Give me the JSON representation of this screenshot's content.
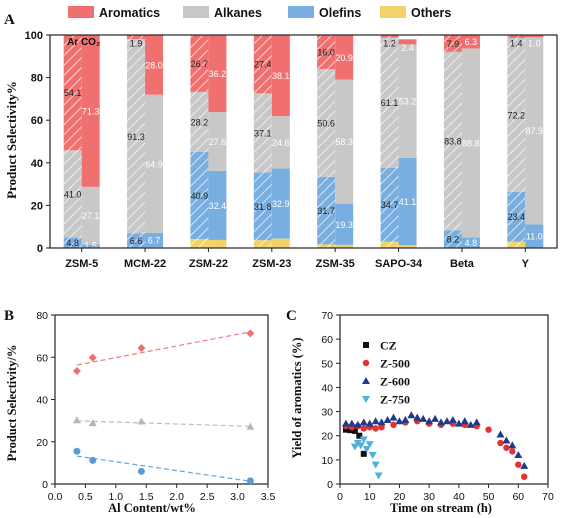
{
  "figure": {
    "panel_labels": [
      "A",
      "B",
      "C"
    ]
  },
  "colors": {
    "Aromatics": "#f07070",
    "Alkanes": "#c8c8c8",
    "Olefins": "#79aee0",
    "Others": "#f2d36b",
    "B_aromatics": "#f07070",
    "B_alkanes": "#b8b8b8",
    "B_olefins": "#5b9bd5",
    "CZ": "#111111",
    "Z-500": "#e83030",
    "Z-600": "#1f3b8a",
    "Z-750": "#4fb3d9"
  },
  "chart_data": [
    {
      "id": "A",
      "type": "bar",
      "stacked": true,
      "ylabel": "Product Selectivity%",
      "ylim": [
        0,
        100
      ],
      "yticks": [
        0,
        20,
        40,
        60,
        80,
        100
      ],
      "legend": [
        "Aromatics",
        "Alkanes",
        "Olefins",
        "Others"
      ],
      "legend_position": "top",
      "bar_labels": [
        "Ar",
        "CO2"
      ],
      "bar_label_display": [
        "Ar",
        "CO₂"
      ],
      "categories": [
        "ZSM-5",
        "MCM-22",
        "ZSM-22",
        "ZSM-23",
        "ZSM-35",
        "SAPO-34",
        "Beta",
        "Y"
      ],
      "groups": [
        {
          "name": "ZSM-5",
          "bars": [
            {
              "atmosphere": "Ar",
              "Others": 0.1,
              "Olefins": 4.8,
              "Alkanes": 41.0,
              "Aromatics": 54.1,
              "labels": [
                "4.8",
                "41.0",
                "54.1"
              ]
            },
            {
              "atmosphere": "CO2",
              "Others": 0.1,
              "Olefins": 1.5,
              "Alkanes": 27.1,
              "Aromatics": 71.3,
              "labels": [
                "1.5",
                "27.1",
                "71.3"
              ]
            }
          ]
        },
        {
          "name": "MCM-22",
          "bars": [
            {
              "atmosphere": "Ar",
              "Others": 0.2,
              "Olefins": 6.6,
              "Alkanes": 91.3,
              "Aromatics": 1.9,
              "labels": [
                "6.6",
                "91.3",
                "1.9"
              ]
            },
            {
              "atmosphere": "CO2",
              "Others": 0.4,
              "Olefins": 6.7,
              "Alkanes": 64.9,
              "Aromatics": 28.0,
              "labels": [
                "6.7",
                "64.9",
                "28.0"
              ]
            }
          ]
        },
        {
          "name": "ZSM-22",
          "bars": [
            {
              "atmosphere": "Ar",
              "Others": 4.2,
              "Olefins": 40.9,
              "Alkanes": 28.2,
              "Aromatics": 26.7,
              "labels": [
                "40.9",
                "28.2",
                "26.7"
              ]
            },
            {
              "atmosphere": "CO2",
              "Others": 3.8,
              "Olefins": 32.4,
              "Alkanes": 27.6,
              "Aromatics": 36.2,
              "labels": [
                "32.4",
                "27.6",
                "36.2"
              ]
            }
          ]
        },
        {
          "name": "ZSM-23",
          "bars": [
            {
              "atmosphere": "Ar",
              "Others": 3.7,
              "Olefins": 31.8,
              "Alkanes": 37.1,
              "Aromatics": 27.4,
              "labels": [
                "31.8",
                "37.1",
                "27.4"
              ]
            },
            {
              "atmosphere": "CO2",
              "Others": 4.4,
              "Olefins": 32.9,
              "Alkanes": 24.6,
              "Aromatics": 38.1,
              "labels": [
                "32.9",
                "24.6",
                "38.1"
              ]
            }
          ]
        },
        {
          "name": "ZSM-35",
          "bars": [
            {
              "atmosphere": "Ar",
              "Others": 1.7,
              "Olefins": 31.7,
              "Alkanes": 50.6,
              "Aromatics": 16.0,
              "labels": [
                "31.7",
                "50.6",
                "16.0"
              ]
            },
            {
              "atmosphere": "CO2",
              "Others": 1.5,
              "Olefins": 19.3,
              "Alkanes": 58.3,
              "Aromatics": 20.9,
              "labels": [
                "19.3",
                "58.3",
                "20.9"
              ]
            }
          ]
        },
        {
          "name": "SAPO-34",
          "bars": [
            {
              "atmosphere": "Ar",
              "Others": 3.0,
              "Olefins": 34.7,
              "Alkanes": 61.1,
              "Aromatics": 1.2,
              "labels": [
                "34.7",
                "61.1",
                "1.2"
              ]
            },
            {
              "atmosphere": "CO2",
              "Others": 1.3,
              "Olefins": 41.1,
              "Alkanes": 53.2,
              "Aromatics": 2.4,
              "labels": [
                "41.1",
                "53.2",
                "2.4"
              ]
            }
          ]
        },
        {
          "name": "Beta",
          "bars": [
            {
              "atmosphere": "Ar",
              "Others": 0.1,
              "Olefins": 8.2,
              "Alkanes": 83.8,
              "Aromatics": 7.9,
              "labels": [
                "8.2",
                "83.8",
                "7.9"
              ]
            },
            {
              "atmosphere": "CO2",
              "Others": 0.1,
              "Olefins": 4.8,
              "Alkanes": 88.8,
              "Aromatics": 6.3,
              "labels": [
                "4.8",
                "88.8",
                "6.3"
              ]
            }
          ]
        },
        {
          "name": "Y",
          "bars": [
            {
              "atmosphere": "Ar",
              "Others": 3.0,
              "Olefins": 23.4,
              "Alkanes": 72.2,
              "Aromatics": 1.4,
              "labels": [
                "23.4",
                "72.2",
                "1.4"
              ]
            },
            {
              "atmosphere": "CO2",
              "Others": 0.1,
              "Olefins": 11.0,
              "Alkanes": 87.9,
              "Aromatics": 1.0,
              "labels": [
                "11.0",
                "87.9",
                "1.0"
              ]
            }
          ]
        }
      ]
    },
    {
      "id": "B",
      "type": "scatter",
      "xlabel": "Al Content/wt%",
      "ylabel": "Product Selectivity/%",
      "xlim": [
        0.0,
        3.5
      ],
      "ylim": [
        0,
        80
      ],
      "xticks": [
        0.0,
        0.5,
        1.0,
        1.5,
        2.0,
        2.5,
        3.0,
        3.5
      ],
      "yticks": [
        0,
        20,
        40,
        60,
        80
      ],
      "trendlines": true,
      "series": [
        {
          "key": "B_aromatics",
          "marker": "diamond",
          "x": [
            0.36,
            0.62,
            1.42,
            3.21
          ],
          "y": [
            53.5,
            59.8,
            64.4,
            71.3
          ],
          "fit": [
            [
              0.36,
              56.3
            ],
            [
              3.21,
              72.0
            ]
          ]
        },
        {
          "key": "B_alkanes",
          "marker": "triangle",
          "x": [
            0.36,
            0.62,
            1.42,
            3.21
          ],
          "y": [
            30.2,
            28.8,
            29.6,
            27.1
          ],
          "fit": [
            [
              0.36,
              29.9
            ],
            [
              3.21,
              27.3
            ]
          ]
        },
        {
          "key": "B_olefins",
          "marker": "circle",
          "x": [
            0.36,
            0.62,
            1.42,
            3.21
          ],
          "y": [
            15.5,
            11.2,
            6.0,
            1.5
          ],
          "fit": [
            [
              0.36,
              13.2
            ],
            [
              3.21,
              1.3
            ]
          ]
        }
      ]
    },
    {
      "id": "C",
      "type": "scatter",
      "xlabel": "Time on stream (h)",
      "ylabel": "Yield of aromatics (%)",
      "xlim": [
        0,
        70
      ],
      "ylim": [
        0,
        70
      ],
      "xticks": [
        0,
        10,
        20,
        30,
        40,
        50,
        60,
        70
      ],
      "yticks": [
        0,
        10,
        20,
        30,
        40,
        50,
        60,
        70
      ],
      "legend_position": "top-left",
      "series": [
        {
          "name": "CZ",
          "marker": "square",
          "x": [
            2,
            3.5,
            5,
            6.5,
            8
          ],
          "y": [
            22.5,
            22.3,
            22.0,
            20.0,
            12.5
          ]
        },
        {
          "name": "Z-500",
          "marker": "circle",
          "x": [
            2,
            4,
            6,
            8,
            10,
            12,
            14,
            18,
            22,
            26,
            30,
            34,
            38,
            42,
            46,
            50,
            54,
            56,
            58,
            60,
            62
          ],
          "y": [
            24.0,
            23.5,
            24.0,
            23.0,
            23.5,
            23.0,
            23.5,
            24.5,
            25.5,
            26.0,
            25.0,
            24.5,
            25.0,
            24.5,
            24.0,
            22.5,
            17.0,
            15.0,
            13.5,
            8.0,
            3.0
          ]
        },
        {
          "name": "Z-600",
          "marker": "triangle",
          "x": [
            2,
            4,
            6,
            8,
            10,
            12,
            14,
            16,
            18,
            20,
            22,
            24,
            26,
            28,
            30,
            32,
            34,
            36,
            38,
            40,
            42,
            44,
            46,
            54,
            56,
            58,
            60,
            62
          ],
          "y": [
            25.0,
            25.0,
            24.5,
            25.5,
            25.0,
            26.0,
            25.5,
            26.5,
            27.5,
            26.0,
            26.5,
            28.5,
            27.5,
            27.0,
            26.0,
            27.0,
            25.5,
            26.0,
            26.5,
            25.0,
            26.0,
            24.5,
            25.5,
            20.5,
            18.0,
            16.0,
            12.0,
            7.5
          ]
        },
        {
          "name": "Z-750",
          "marker": "triangle-down",
          "x": [
            5,
            6,
            7,
            8,
            9,
            10,
            11,
            12,
            13
          ],
          "y": [
            15.5,
            17.0,
            16.0,
            18.5,
            14.5,
            16.5,
            12.0,
            8.0,
            3.5
          ]
        }
      ]
    }
  ]
}
